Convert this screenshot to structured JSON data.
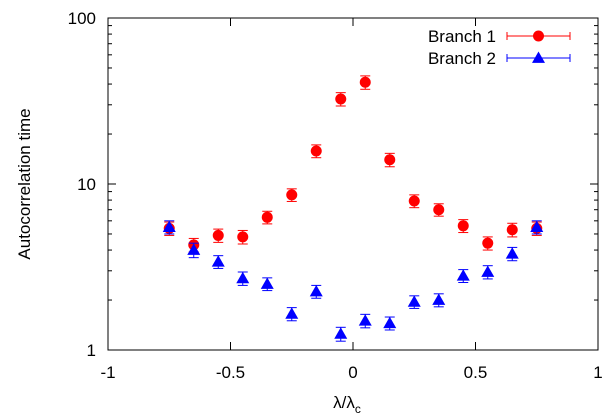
{
  "chart_data": {
    "type": "scatter",
    "xlabel": "λ/λ",
    "xlabel_sub": "c",
    "ylabel": "Autocorrelation time",
    "xlim": [
      -1,
      1
    ],
    "ylim": [
      1,
      100
    ],
    "yscale": "log",
    "x_ticks": [
      -1,
      -0.5,
      0,
      0.5,
      1
    ],
    "x_tick_labels": [
      "-1",
      "-0.5",
      "0",
      "0.5",
      "1"
    ],
    "y_ticks": [
      1,
      10,
      100
    ],
    "y_tick_labels": [
      "1",
      "10",
      "100"
    ],
    "legend_position": "top-right",
    "grid": false,
    "series": [
      {
        "name": "Branch 1",
        "color": "#ff0000",
        "marker": "circle",
        "x": [
          -0.75,
          -0.65,
          -0.55,
          -0.45,
          -0.35,
          -0.25,
          -0.15,
          -0.05,
          0.05,
          0.15,
          0.25,
          0.35,
          0.45,
          0.55,
          0.65,
          0.75
        ],
        "y": [
          5.4,
          4.3,
          4.9,
          4.8,
          6.3,
          8.6,
          15.8,
          32.5,
          41.0,
          14.0,
          7.9,
          7.0,
          5.6,
          4.4,
          5.3,
          5.4
        ],
        "err": [
          0.5,
          0.4,
          0.45,
          0.45,
          0.55,
          0.75,
          1.4,
          3.0,
          3.8,
          1.3,
          0.7,
          0.6,
          0.5,
          0.4,
          0.5,
          0.5
        ]
      },
      {
        "name": "Branch 2",
        "color": "#0000ff",
        "marker": "triangle",
        "x": [
          -0.75,
          -0.65,
          -0.55,
          -0.45,
          -0.35,
          -0.25,
          -0.15,
          -0.05,
          0.05,
          0.15,
          0.25,
          0.35,
          0.45,
          0.55,
          0.65,
          0.75
        ],
        "y": [
          5.5,
          4.0,
          3.4,
          2.7,
          2.5,
          1.65,
          2.25,
          1.25,
          1.5,
          1.45,
          1.95,
          2.0,
          2.8,
          2.95,
          3.8,
          5.5
        ],
        "err": [
          0.5,
          0.4,
          0.3,
          0.25,
          0.22,
          0.15,
          0.2,
          0.12,
          0.14,
          0.13,
          0.17,
          0.18,
          0.25,
          0.27,
          0.35,
          0.5
        ]
      }
    ]
  }
}
